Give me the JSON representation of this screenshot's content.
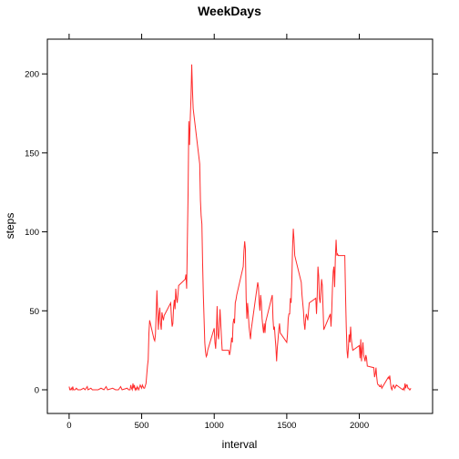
{
  "chart_data": {
    "type": "line",
    "title": "WeekDays",
    "xlabel": "interval",
    "ylabel": "steps",
    "xlim": [
      -150,
      2505
    ],
    "ylim": [
      -15,
      222
    ],
    "xticks": [
      0,
      500,
      1000,
      1500,
      2000
    ],
    "yticks": [
      0,
      50,
      100,
      150,
      200
    ],
    "grid": false,
    "legend": "none",
    "series": [
      {
        "color": "#ff2a2a",
        "points": [
          [
            0,
            2
          ],
          [
            5,
            0
          ],
          [
            10,
            0
          ],
          [
            15,
            1
          ],
          [
            20,
            0
          ],
          [
            25,
            2
          ],
          [
            30,
            0
          ],
          [
            40,
            0
          ],
          [
            50,
            1
          ],
          [
            60,
            0
          ],
          [
            80,
            0
          ],
          [
            100,
            1
          ],
          [
            110,
            0
          ],
          [
            125,
            2
          ],
          [
            130,
            0
          ],
          [
            150,
            1
          ],
          [
            160,
            0
          ],
          [
            180,
            0
          ],
          [
            200,
            0
          ],
          [
            220,
            1
          ],
          [
            240,
            0
          ],
          [
            255,
            2
          ],
          [
            265,
            0
          ],
          [
            300,
            1
          ],
          [
            320,
            0
          ],
          [
            340,
            0
          ],
          [
            355,
            2
          ],
          [
            365,
            0
          ],
          [
            400,
            1
          ],
          [
            410,
            0
          ],
          [
            420,
            0
          ],
          [
            425,
            3
          ],
          [
            430,
            1
          ],
          [
            435,
            0
          ],
          [
            440,
            4
          ],
          [
            445,
            1
          ],
          [
            450,
            3
          ],
          [
            455,
            0
          ],
          [
            460,
            1
          ],
          [
            465,
            0
          ],
          [
            470,
            2
          ],
          [
            480,
            0
          ],
          [
            490,
            3
          ],
          [
            500,
            1
          ],
          [
            505,
            3
          ],
          [
            510,
            2
          ],
          [
            515,
            1
          ],
          [
            520,
            1
          ],
          [
            530,
            4
          ],
          [
            540,
            15
          ],
          [
            545,
            19
          ],
          [
            550,
            36
          ],
          [
            555,
            44
          ],
          [
            560,
            42
          ],
          [
            565,
            40
          ],
          [
            570,
            38
          ],
          [
            575,
            36
          ],
          [
            580,
            34
          ],
          [
            585,
            32
          ],
          [
            590,
            31
          ],
          [
            595,
            35
          ],
          [
            600,
            48
          ],
          [
            605,
            63
          ],
          [
            610,
            50
          ],
          [
            615,
            38
          ],
          [
            620,
            48
          ],
          [
            625,
            52
          ],
          [
            630,
            42
          ],
          [
            635,
            38
          ],
          [
            640,
            49
          ],
          [
            645,
            46
          ],
          [
            650,
            44
          ],
          [
            655,
            47
          ],
          [
            700,
            55
          ],
          [
            705,
            46
          ],
          [
            710,
            40
          ],
          [
            715,
            42
          ],
          [
            720,
            52
          ],
          [
            725,
            57
          ],
          [
            730,
            51
          ],
          [
            735,
            64
          ],
          [
            740,
            58
          ],
          [
            745,
            55
          ],
          [
            750,
            60
          ],
          [
            755,
            66
          ],
          [
            800,
            70
          ],
          [
            805,
            73
          ],
          [
            810,
            64
          ],
          [
            815,
            95
          ],
          [
            820,
            125
          ],
          [
            825,
            170
          ],
          [
            830,
            155
          ],
          [
            835,
            172
          ],
          [
            840,
            185
          ],
          [
            845,
            206
          ],
          [
            850,
            190
          ],
          [
            855,
            178
          ],
          [
            900,
            143
          ],
          [
            905,
            120
          ],
          [
            910,
            110
          ],
          [
            915,
            105
          ],
          [
            920,
            80
          ],
          [
            925,
            60
          ],
          [
            930,
            45
          ],
          [
            935,
            30
          ],
          [
            940,
            24
          ],
          [
            945,
            21
          ],
          [
            950,
            22
          ],
          [
            955,
            25
          ],
          [
            1000,
            39
          ],
          [
            1005,
            30
          ],
          [
            1010,
            26
          ],
          [
            1015,
            36
          ],
          [
            1020,
            53
          ],
          [
            1025,
            35
          ],
          [
            1030,
            32
          ],
          [
            1035,
            40
          ],
          [
            1040,
            51
          ],
          [
            1045,
            42
          ],
          [
            1050,
            33
          ],
          [
            1055,
            25
          ],
          [
            1100,
            25
          ],
          [
            1105,
            22
          ],
          [
            1110,
            24
          ],
          [
            1115,
            28
          ],
          [
            1120,
            33
          ],
          [
            1125,
            30
          ],
          [
            1130,
            42
          ],
          [
            1135,
            45
          ],
          [
            1140,
            42
          ],
          [
            1145,
            55
          ],
          [
            1150,
            57
          ],
          [
            1155,
            60
          ],
          [
            1200,
            78
          ],
          [
            1205,
            88
          ],
          [
            1210,
            94
          ],
          [
            1215,
            89
          ],
          [
            1220,
            58
          ],
          [
            1225,
            45
          ],
          [
            1230,
            55
          ],
          [
            1235,
            48
          ],
          [
            1240,
            40
          ],
          [
            1245,
            36
          ],
          [
            1250,
            32
          ],
          [
            1255,
            38
          ],
          [
            1300,
            68
          ],
          [
            1305,
            65
          ],
          [
            1310,
            55
          ],
          [
            1315,
            50
          ],
          [
            1320,
            60
          ],
          [
            1325,
            55
          ],
          [
            1330,
            45
          ],
          [
            1335,
            40
          ],
          [
            1340,
            36
          ],
          [
            1345,
            42
          ],
          [
            1350,
            36
          ],
          [
            1355,
            43
          ],
          [
            1400,
            60
          ],
          [
            1405,
            45
          ],
          [
            1410,
            38
          ],
          [
            1415,
            40
          ],
          [
            1420,
            33
          ],
          [
            1425,
            27
          ],
          [
            1430,
            18
          ],
          [
            1435,
            27
          ],
          [
            1440,
            32
          ],
          [
            1445,
            38
          ],
          [
            1450,
            42
          ],
          [
            1455,
            36
          ],
          [
            1500,
            30
          ],
          [
            1505,
            35
          ],
          [
            1510,
            45
          ],
          [
            1515,
            48
          ],
          [
            1520,
            48
          ],
          [
            1525,
            58
          ],
          [
            1530,
            55
          ],
          [
            1535,
            70
          ],
          [
            1540,
            90
          ],
          [
            1545,
            102
          ],
          [
            1550,
            95
          ],
          [
            1555,
            85
          ],
          [
            1600,
            68
          ],
          [
            1605,
            60
          ],
          [
            1610,
            55
          ],
          [
            1615,
            50
          ],
          [
            1620,
            42
          ],
          [
            1625,
            38
          ],
          [
            1630,
            45
          ],
          [
            1635,
            48
          ],
          [
            1640,
            46
          ],
          [
            1645,
            44
          ],
          [
            1650,
            50
          ],
          [
            1655,
            55
          ],
          [
            1700,
            58
          ],
          [
            1705,
            48
          ],
          [
            1710,
            60
          ],
          [
            1715,
            78
          ],
          [
            1720,
            72
          ],
          [
            1725,
            58
          ],
          [
            1730,
            55
          ],
          [
            1735,
            62
          ],
          [
            1740,
            70
          ],
          [
            1745,
            66
          ],
          [
            1750,
            52
          ],
          [
            1755,
            38
          ],
          [
            1800,
            48
          ],
          [
            1805,
            40
          ],
          [
            1810,
            50
          ],
          [
            1815,
            65
          ],
          [
            1820,
            75
          ],
          [
            1825,
            78
          ],
          [
            1830,
            65
          ],
          [
            1835,
            84
          ],
          [
            1840,
            95
          ],
          [
            1845,
            85
          ],
          [
            1850,
            86
          ],
          [
            1855,
            85
          ],
          [
            1900,
            85
          ],
          [
            1905,
            60
          ],
          [
            1910,
            40
          ],
          [
            1915,
            25
          ],
          [
            1920,
            20
          ],
          [
            1925,
            27
          ],
          [
            1930,
            35
          ],
          [
            1935,
            30
          ],
          [
            1940,
            40
          ],
          [
            1945,
            32
          ],
          [
            1950,
            28
          ],
          [
            1955,
            25
          ],
          [
            2000,
            28
          ],
          [
            2005,
            20
          ],
          [
            2010,
            32
          ],
          [
            2015,
            18
          ],
          [
            2020,
            25
          ],
          [
            2025,
            30
          ],
          [
            2030,
            22
          ],
          [
            2035,
            20
          ],
          [
            2040,
            18
          ],
          [
            2045,
            22
          ],
          [
            2050,
            20
          ],
          [
            2055,
            15
          ],
          [
            2100,
            14
          ],
          [
            2105,
            8
          ],
          [
            2110,
            10
          ],
          [
            2115,
            14
          ],
          [
            2120,
            8
          ],
          [
            2125,
            4
          ],
          [
            2130,
            3
          ],
          [
            2135,
            3
          ],
          [
            2140,
            2
          ],
          [
            2145,
            2
          ],
          [
            2150,
            3
          ],
          [
            2155,
            1
          ],
          [
            2200,
            8
          ],
          [
            2205,
            7
          ],
          [
            2210,
            9
          ],
          [
            2215,
            4
          ],
          [
            2220,
            1
          ],
          [
            2225,
            0
          ],
          [
            2230,
            2
          ],
          [
            2235,
            3
          ],
          [
            2240,
            2
          ],
          [
            2245,
            1
          ],
          [
            2250,
            2
          ],
          [
            2255,
            3
          ],
          [
            2300,
            0
          ],
          [
            2305,
            1
          ],
          [
            2310,
            0
          ],
          [
            2315,
            4
          ],
          [
            2320,
            1
          ],
          [
            2325,
            3
          ],
          [
            2330,
            3
          ],
          [
            2335,
            1
          ],
          [
            2340,
            1
          ],
          [
            2345,
            0
          ],
          [
            2350,
            0
          ],
          [
            2355,
            1
          ]
        ]
      }
    ]
  }
}
